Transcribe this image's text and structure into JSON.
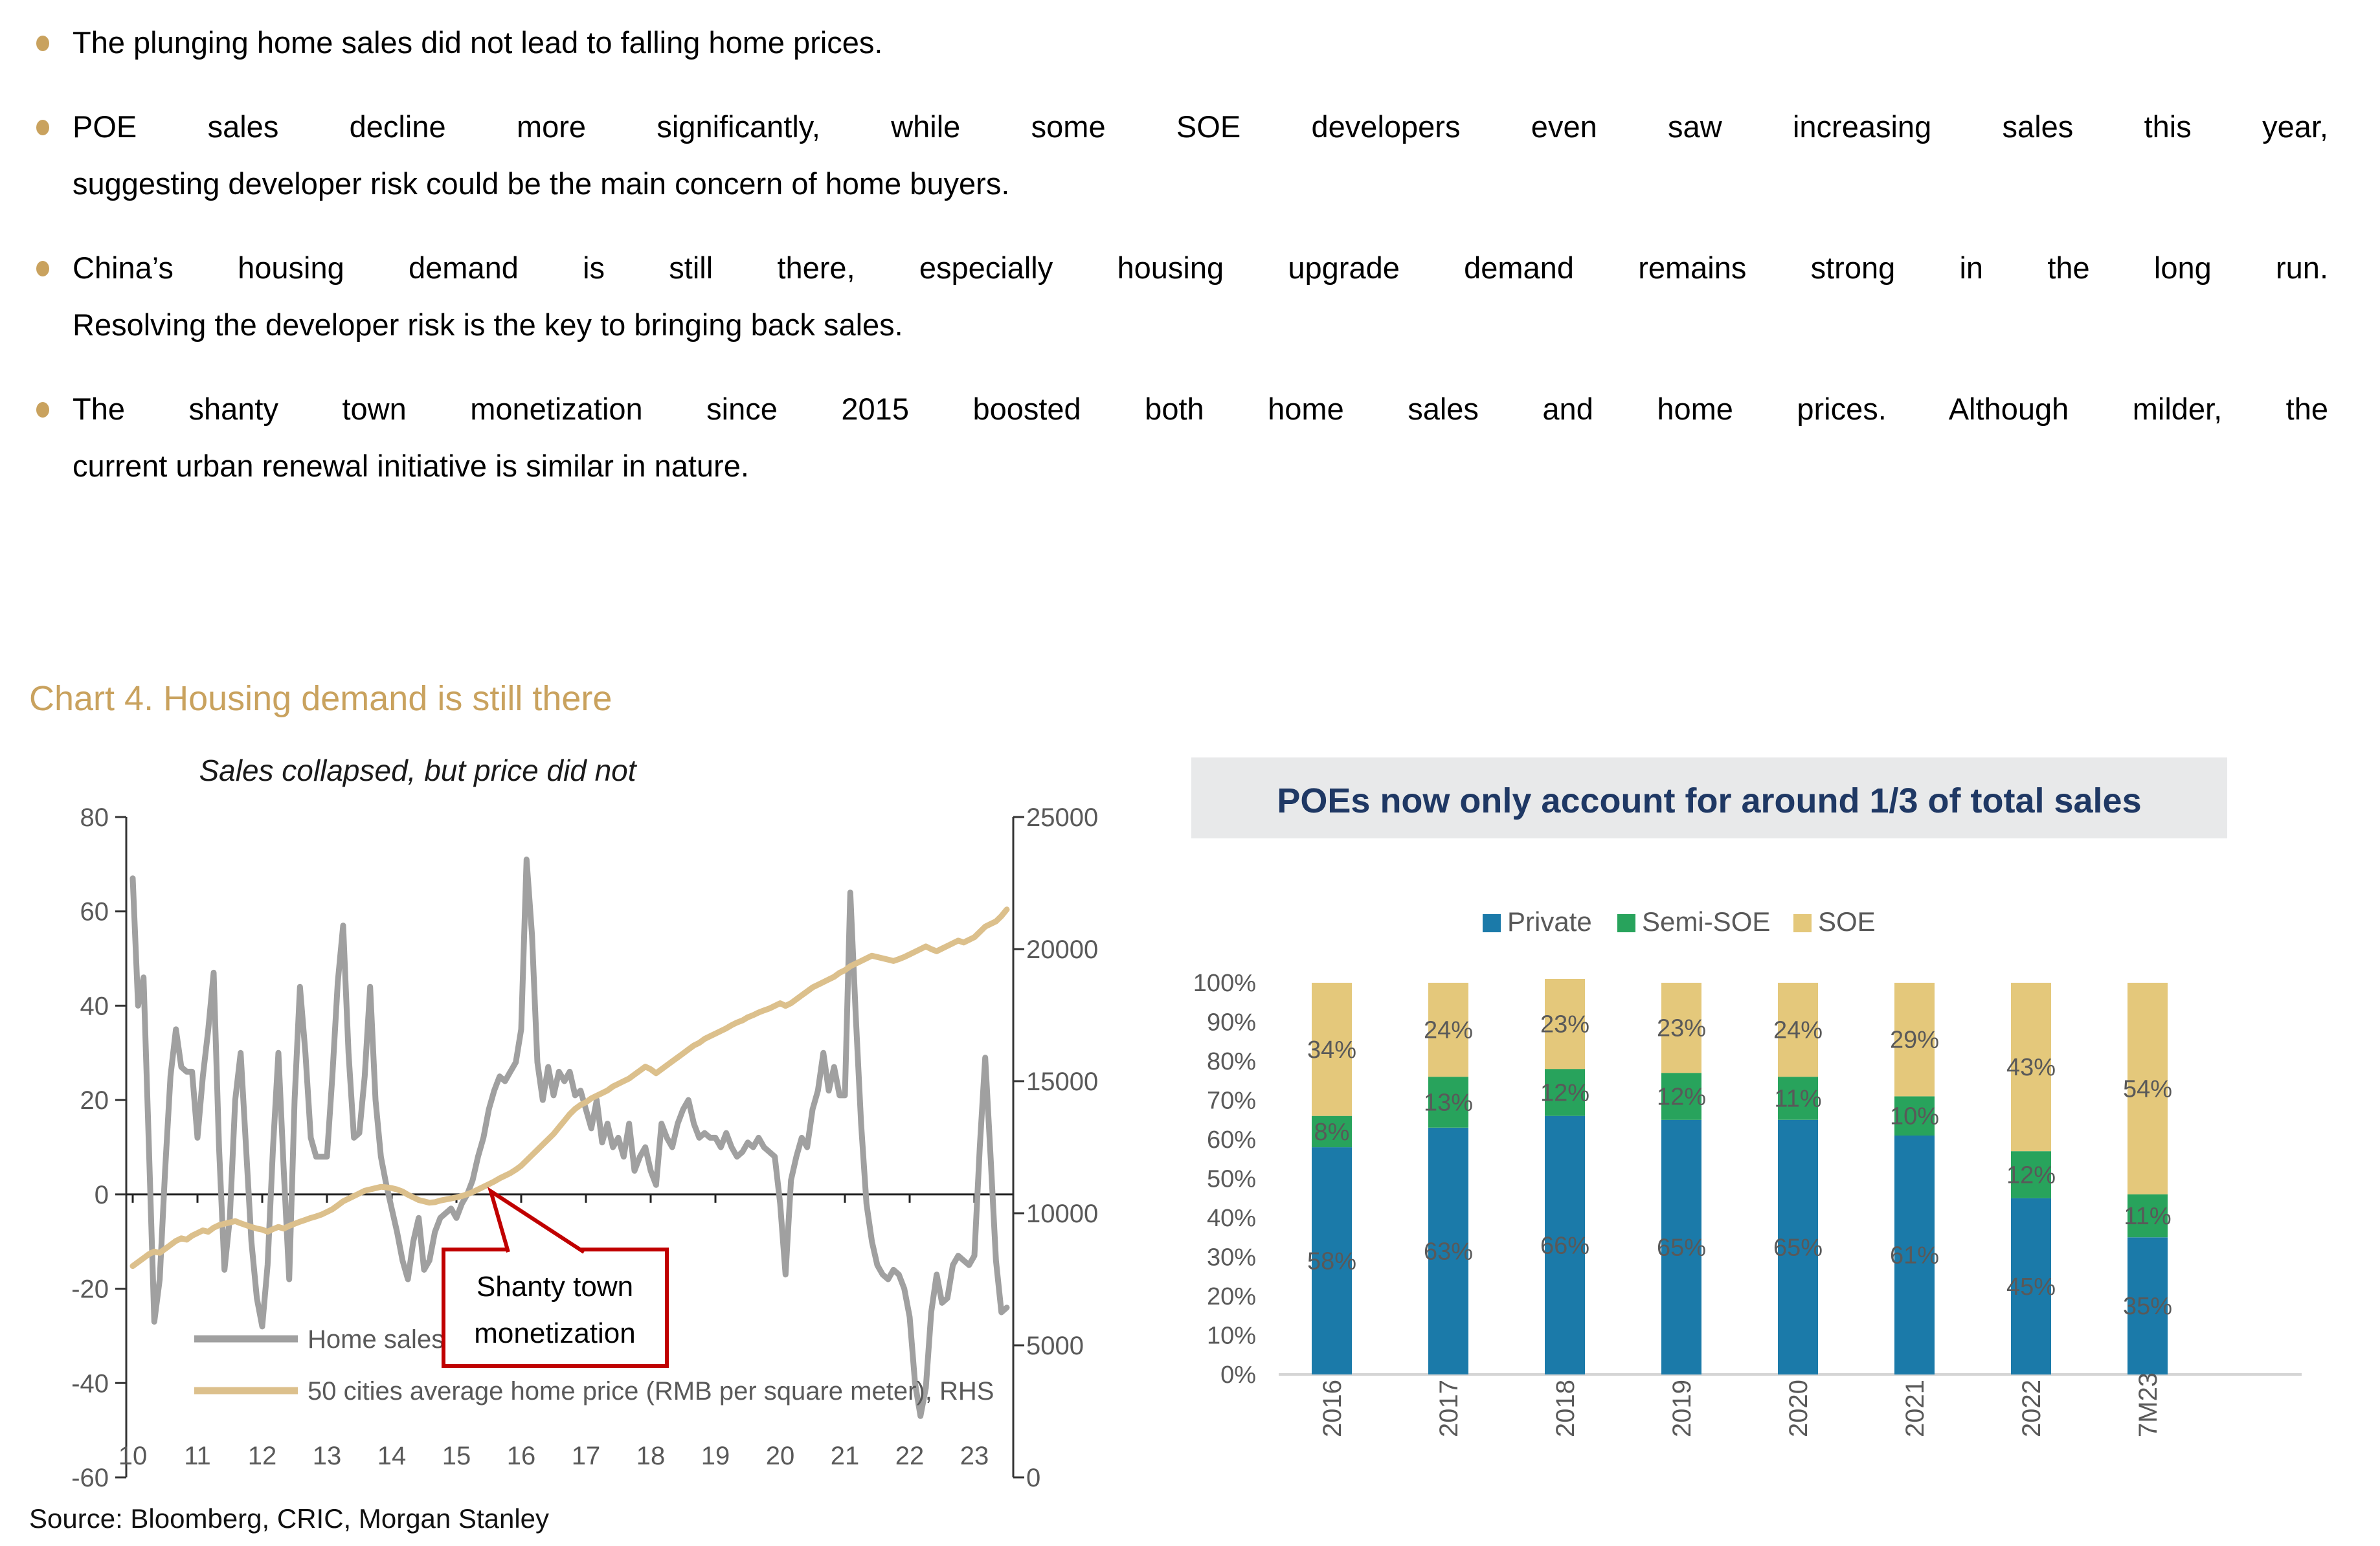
{
  "colors": {
    "accent_gold": "#C9A25E",
    "bullet_dot": "#C9A25E",
    "line_gray": "#A0A0A0",
    "line_tan": "#DCC08C",
    "callout_red": "#C00000",
    "title_navy": "#1F3864",
    "bar_blue": "#1B7AA9",
    "bar_green": "#28A35C",
    "bar_tan": "#E4C87B",
    "text_gray": "#595959",
    "banner_bg": "#E8E9EA",
    "baseline_gray": "#D5D5D5"
  },
  "bullets": [
    {
      "lines": [
        "The plunging home sales did not lead to falling home prices."
      ]
    },
    {
      "lines": [
        "POE sales decline more significantly, while some SOE developers even saw increasing sales this year,",
        "suggesting developer risk could be the main concern of home buyers."
      ]
    },
    {
      "lines": [
        "China’s housing demand is still there, especially housing upgrade demand remains strong in the long run.",
        "Resolving the developer risk is the key to bringing back sales."
      ]
    },
    {
      "lines": [
        "The shanty town monetization since 2015 boosted both home sales and home prices. Although milder, the",
        "current urban renewal initiative is similar in nature."
      ]
    }
  ],
  "section_title": "Chart 4. Housing demand is still there",
  "source_note": "Source: Bloomberg, CRIC, Morgan Stanley",
  "chart_data": [
    {
      "type": "line",
      "title": "Sales collapsed, but price did not",
      "x_start_year": 2010,
      "x_step_months": 1,
      "x_tick_labels": [
        "10",
        "11",
        "12",
        "13",
        "14",
        "15",
        "16",
        "17",
        "18",
        "19",
        "20",
        "21",
        "22",
        "23"
      ],
      "left_axis": {
        "range": [
          -60,
          80
        ],
        "ticks": [
          80,
          60,
          40,
          20,
          0,
          -20,
          -40,
          -60
        ]
      },
      "right_axis": {
        "range": [
          0,
          25000
        ],
        "ticks": [
          25000,
          20000,
          15000,
          10000,
          5000,
          0
        ]
      },
      "grid": false,
      "legend_position": "bottom-left-inside",
      "series": [
        {
          "name": "Home sales (YoY, %), LHS",
          "axis": "left",
          "color_key": "line_gray",
          "values": [
            67,
            40,
            46,
            10,
            -27,
            -18,
            5,
            25,
            35,
            27,
            26,
            26,
            12,
            25,
            35,
            47,
            10,
            -16,
            -5,
            20,
            30,
            10,
            -10,
            -22,
            -28,
            -15,
            10,
            30,
            5,
            -18,
            20,
            44,
            30,
            12,
            8,
            8,
            8,
            25,
            45,
            57,
            30,
            12,
            13,
            25,
            44,
            20,
            8,
            2,
            -3,
            -8,
            -14,
            -18,
            -10,
            -5,
            -16,
            -14,
            -8,
            -5,
            -4,
            -3,
            -5,
            -2,
            0,
            3,
            8,
            12,
            18,
            22,
            25,
            24,
            26,
            28,
            35,
            71,
            55,
            28,
            20,
            27,
            21,
            26,
            24,
            26,
            21,
            22,
            18,
            14,
            20,
            11,
            15,
            10,
            12,
            8,
            15,
            5,
            8,
            10,
            5,
            2,
            15,
            12,
            10,
            15,
            18,
            20,
            15,
            12,
            13,
            12,
            12,
            10,
            13,
            10,
            8,
            9,
            11,
            10,
            12,
            10,
            9,
            8,
            -2,
            -17,
            3,
            8,
            12,
            10,
            18,
            22,
            30,
            22,
            27,
            21,
            21,
            64,
            38,
            15,
            -2,
            -10,
            -15,
            -17,
            -18,
            -16,
            -17,
            -20,
            -26,
            -40,
            -47,
            -41,
            -25,
            -17,
            -23,
            -22,
            -15,
            -13,
            -14,
            -15,
            -13,
            10,
            29,
            8,
            -14,
            -25,
            -24
          ]
        },
        {
          "name": "50 cities average home price (RMB per square meter), RHS",
          "axis": "right",
          "color_key": "line_tan",
          "values": [
            8000,
            8150,
            8300,
            8450,
            8550,
            8500,
            8650,
            8800,
            8950,
            9050,
            9000,
            9150,
            9250,
            9350,
            9300,
            9450,
            9550,
            9600,
            9650,
            9700,
            9620,
            9550,
            9480,
            9420,
            9380,
            9300,
            9400,
            9480,
            9420,
            9520,
            9600,
            9680,
            9750,
            9820,
            9880,
            9950,
            10050,
            10150,
            10300,
            10450,
            10550,
            10650,
            10750,
            10850,
            10900,
            10950,
            11000,
            10980,
            10950,
            10900,
            10820,
            10700,
            10600,
            10500,
            10450,
            10400,
            10420,
            10480,
            10520,
            10560,
            10600,
            10650,
            10720,
            10800,
            10900,
            11000,
            11100,
            11200,
            11320,
            11420,
            11520,
            11650,
            11800,
            12000,
            12200,
            12400,
            12600,
            12800,
            13000,
            13250,
            13500,
            13750,
            13950,
            14100,
            14200,
            14350,
            14450,
            14550,
            14650,
            14800,
            14900,
            15000,
            15100,
            15250,
            15400,
            15550,
            15450,
            15300,
            15450,
            15600,
            15750,
            15900,
            16050,
            16200,
            16350,
            16450,
            16600,
            16700,
            16800,
            16900,
            17000,
            17120,
            17220,
            17300,
            17420,
            17500,
            17600,
            17680,
            17750,
            17850,
            17950,
            17850,
            17950,
            18100,
            18250,
            18400,
            18550,
            18650,
            18750,
            18850,
            18950,
            19100,
            19200,
            19350,
            19450,
            19550,
            19650,
            19750,
            19700,
            19650,
            19600,
            19550,
            19620,
            19700,
            19800,
            19900,
            20000,
            20100,
            20000,
            19920,
            20020,
            20120,
            20220,
            20320,
            20250,
            20350,
            20450,
            20650,
            20850,
            20950,
            21050,
            21250,
            21500
          ]
        }
      ],
      "annotation": {
        "lines": [
          "Shanty town",
          "monetization"
        ],
        "points_to_year": 2015.5
      }
    },
    {
      "type": "bar",
      "stacked": true,
      "title": "POEs now only account for around 1/3 of total sales",
      "categories": [
        "2016",
        "2017",
        "2018",
        "2019",
        "2020",
        "2021",
        "2022",
        "7M23"
      ],
      "series": [
        {
          "name": "Private",
          "color_key": "bar_blue",
          "values": [
            58,
            63,
            66,
            65,
            65,
            61,
            45,
            35
          ]
        },
        {
          "name": "Semi-SOE",
          "color_key": "bar_green",
          "values": [
            8,
            13,
            12,
            12,
            11,
            10,
            12,
            11
          ]
        },
        {
          "name": "SOE",
          "color_key": "bar_tan",
          "values": [
            34,
            24,
            23,
            23,
            24,
            29,
            43,
            54
          ]
        }
      ],
      "data_labels": true,
      "y_tick_labels": [
        "100%",
        "90%",
        "80%",
        "70%",
        "60%",
        "50%",
        "40%",
        "30%",
        "20%",
        "10%",
        "0%"
      ],
      "ylim": [
        0,
        100
      ],
      "grid": false,
      "legend_position": "top-center"
    }
  ]
}
